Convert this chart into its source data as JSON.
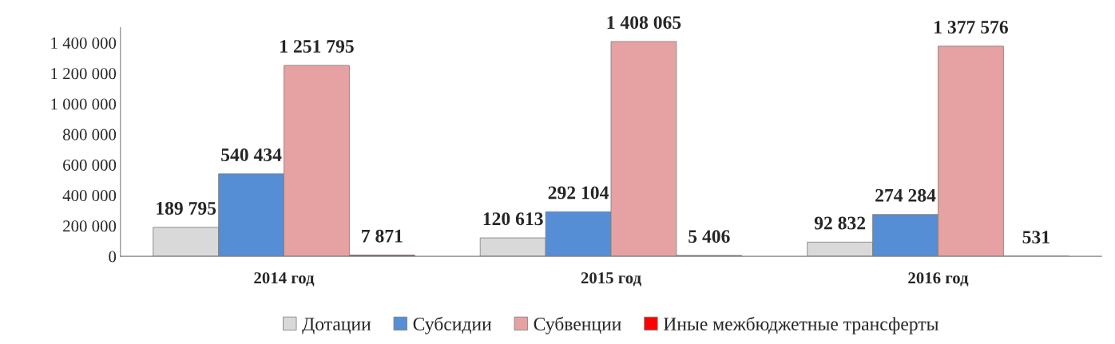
{
  "chart_data": {
    "type": "bar",
    "categories": [
      "2014 год",
      "2015 год",
      "2016 год"
    ],
    "series": [
      {
        "name": "Дотации",
        "color": "#d9d9d9",
        "values": [
          189795,
          120613,
          92832
        ],
        "value_labels": [
          "189 795",
          "120 613",
          "92 832"
        ]
      },
      {
        "name": "Субсидии",
        "color": "#558ed5",
        "values": [
          540434,
          292104,
          274284
        ],
        "value_labels": [
          "540 434",
          "292 104",
          "274 284"
        ]
      },
      {
        "name": "Субвенции",
        "color": "#e6a2a2",
        "values": [
          1251795,
          1408065,
          1377576
        ],
        "value_labels": [
          "1 251 795",
          "1 408 065",
          "1 377 576"
        ]
      },
      {
        "name": "Иные межбюджетные трансферты",
        "color": "#ff0000",
        "values": [
          7871,
          5406,
          531
        ],
        "value_labels": [
          "7 871",
          "5 406",
          "531"
        ]
      }
    ],
    "ylim": [
      0,
      1500000
    ],
    "yticks": [
      0,
      {
        "value": 200000,
        "label": "200 000"
      },
      {
        "value": 400000,
        "label": "400 000"
      },
      {
        "value": 600000,
        "label": "600 000"
      },
      {
        "value": 800000,
        "label": "800 000"
      },
      {
        "value": 1000000,
        "label": "1 000 000"
      },
      {
        "value": 1200000,
        "label": "1 200 000"
      },
      {
        "value": 1400000,
        "label": "1 400 000"
      }
    ],
    "grid": false,
    "legend": "bottom"
  }
}
